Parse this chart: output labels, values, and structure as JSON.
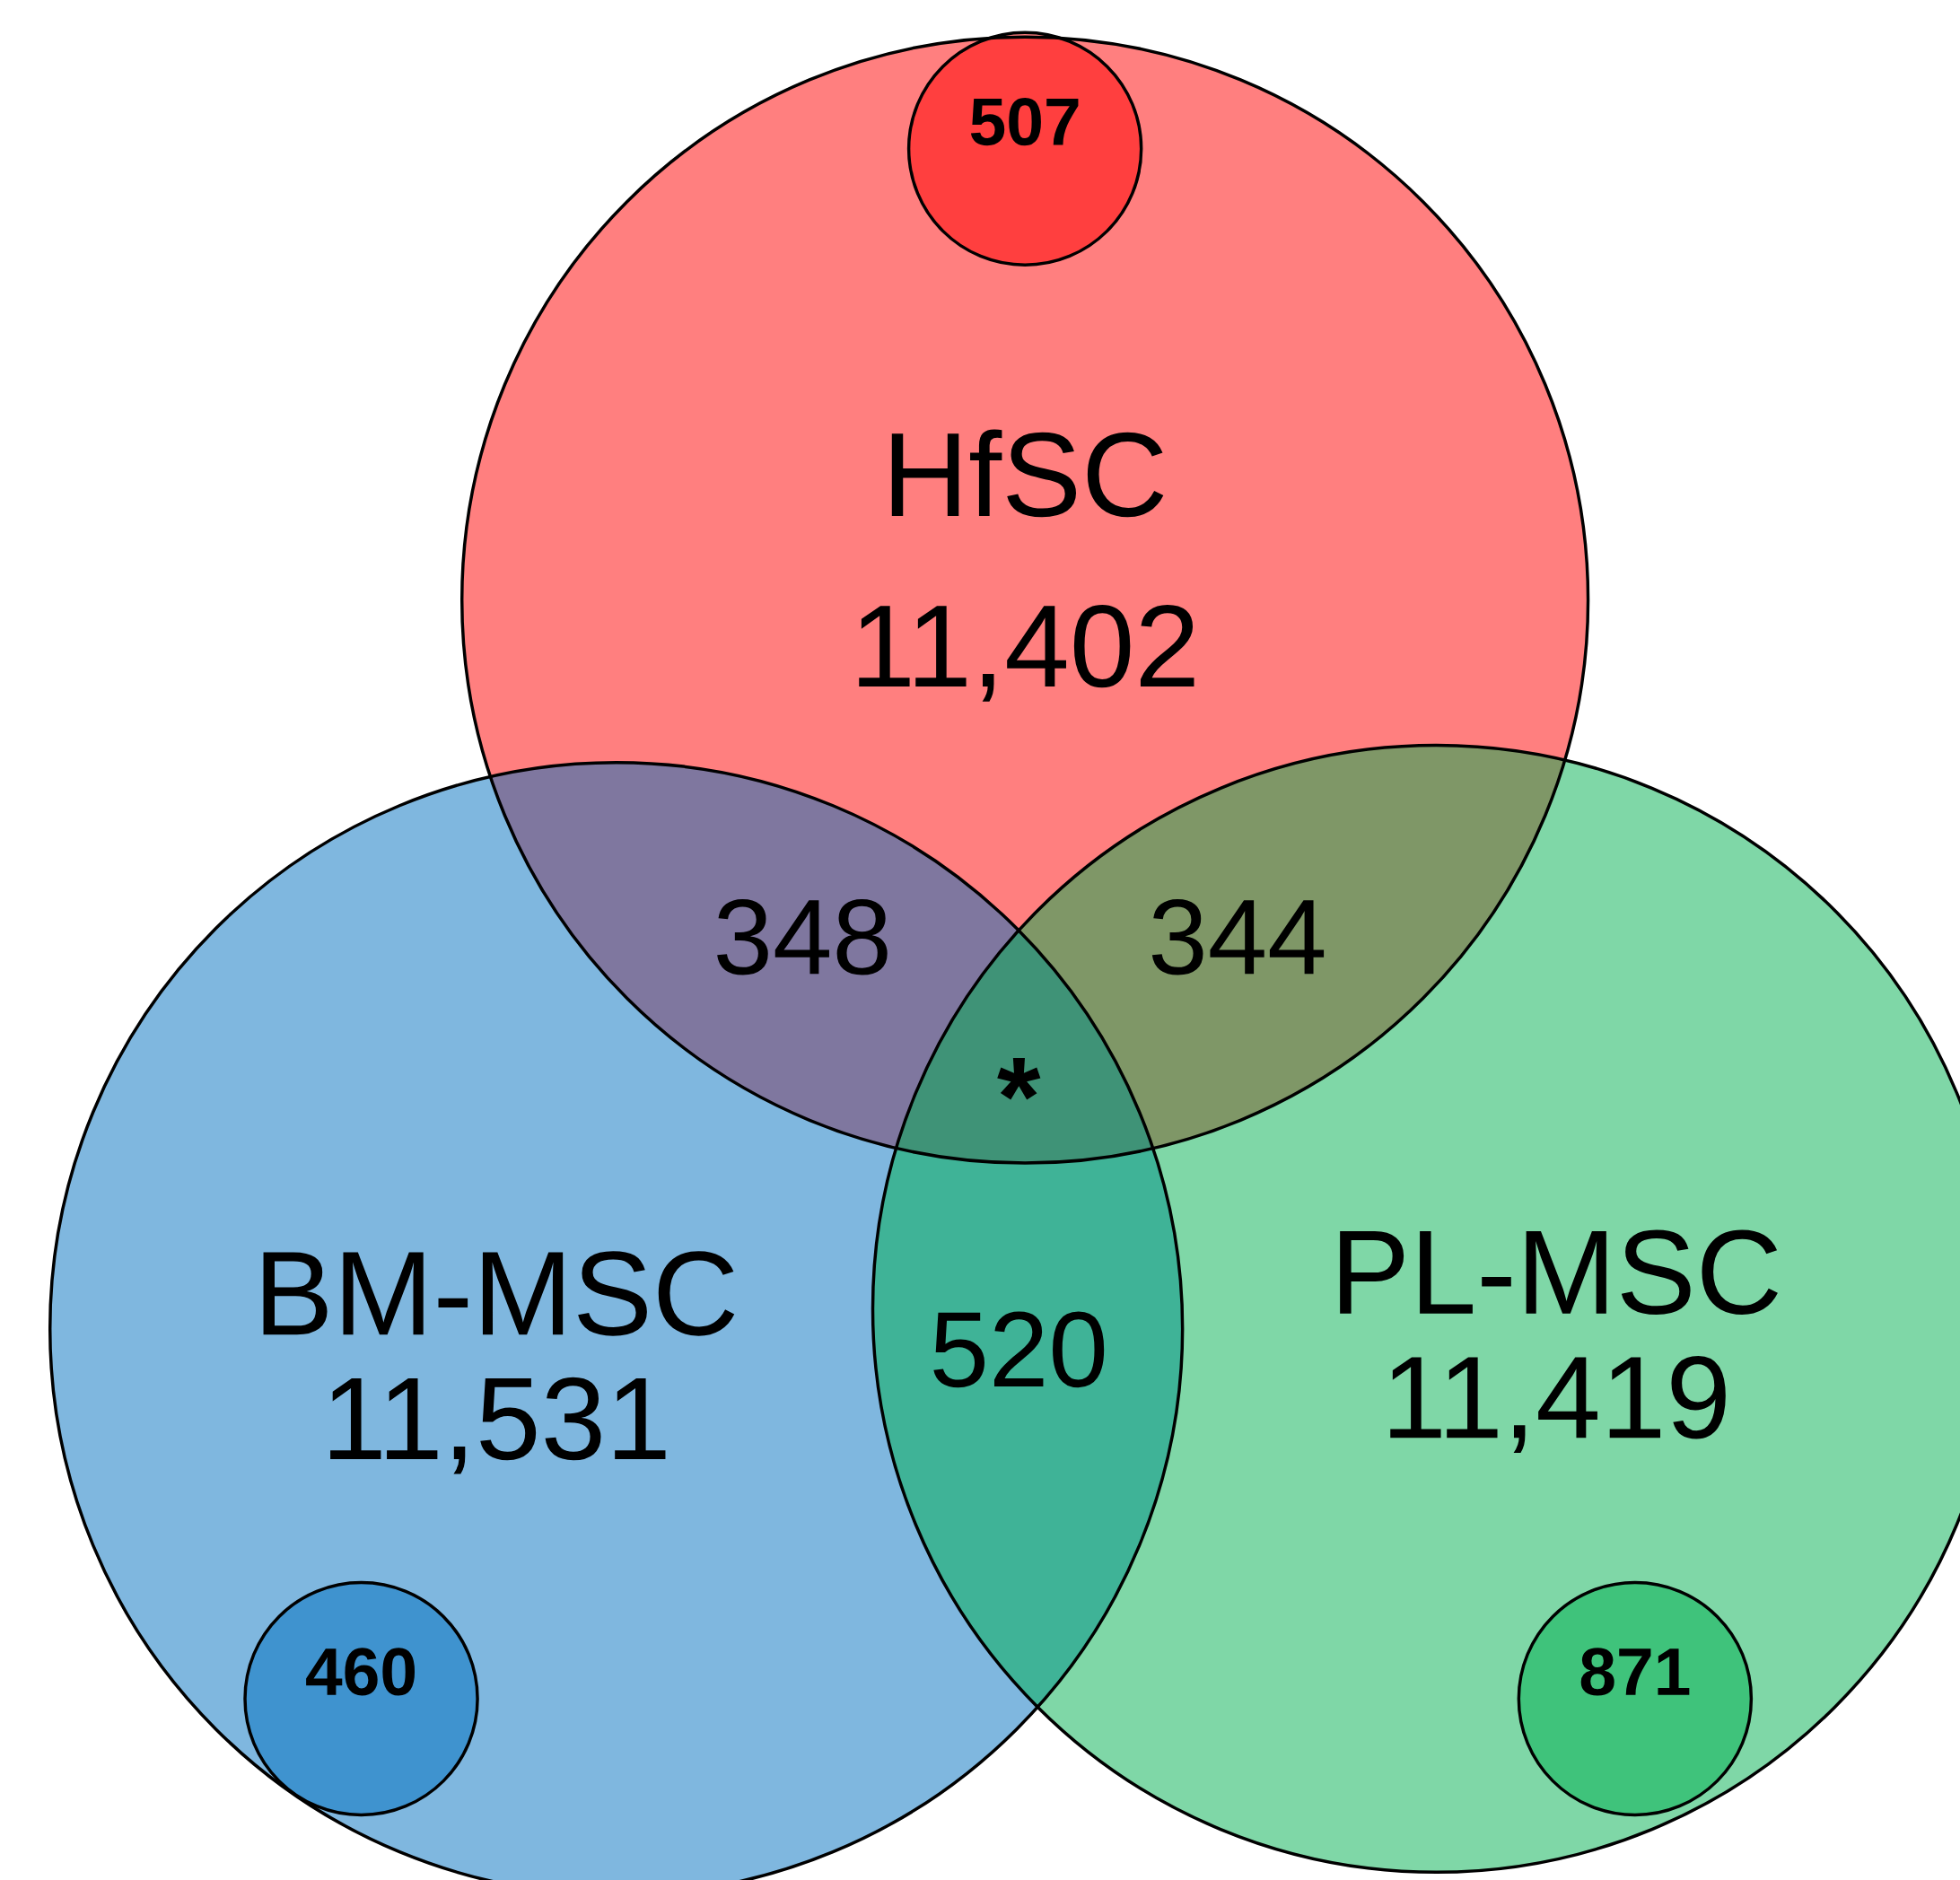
{
  "chart_data": {
    "type": "other",
    "categories": [
      "HfSC",
      "BM-MSC",
      "PL-MSC"
    ],
    "values": [
      11402,
      11531,
      11419
    ],
    "value_labels": [
      "11,402",
      "11,531",
      "11,419"
    ],
    "colors": [
      "#ff0000",
      "#0070c0",
      "#00b050"
    ],
    "annotations": [
      "348",
      "344",
      "520",
      "*",
      "507",
      "460",
      "871"
    ]
  }
}
